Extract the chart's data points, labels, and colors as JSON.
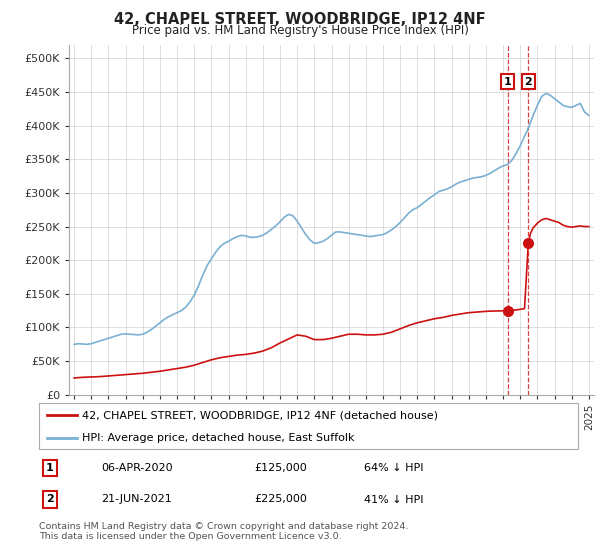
{
  "title": "42, CHAPEL STREET, WOODBRIDGE, IP12 4NF",
  "subtitle": "Price paid vs. HM Land Registry's House Price Index (HPI)",
  "yticks": [
    0,
    50000,
    100000,
    150000,
    200000,
    250000,
    300000,
    350000,
    400000,
    450000,
    500000
  ],
  "ytick_labels": [
    "£0",
    "£50K",
    "£100K",
    "£150K",
    "£200K",
    "£250K",
    "£300K",
    "£350K",
    "£400K",
    "£450K",
    "£500K"
  ],
  "xlim_start": 1994.7,
  "xlim_end": 2025.3,
  "ylim": [
    0,
    520000
  ],
  "hpi_color": "#7ab0d4",
  "price_color": "#cc1111",
  "dashed_color": "#cc1111",
  "transaction1": {
    "date_label": "06-APR-2020",
    "year": 2020.27,
    "price": 125000,
    "label": "64% ↓ HPI",
    "num": "1"
  },
  "transaction2": {
    "date_label": "21-JUN-2021",
    "year": 2021.47,
    "price": 225000,
    "label": "41% ↓ HPI",
    "num": "2"
  },
  "legend_line1": "42, CHAPEL STREET, WOODBRIDGE, IP12 4NF (detached house)",
  "legend_line2": "HPI: Average price, detached house, East Suffolk",
  "footer": "Contains HM Land Registry data © Crown copyright and database right 2024.\nThis data is licensed under the Open Government Licence v3.0.",
  "hpi_data": [
    [
      1995.0,
      75000
    ],
    [
      1995.25,
      76000
    ],
    [
      1995.5,
      75500
    ],
    [
      1995.75,
      75000
    ],
    [
      1996.0,
      76000
    ],
    [
      1996.25,
      78000
    ],
    [
      1996.5,
      80000
    ],
    [
      1996.75,
      82000
    ],
    [
      1997.0,
      84000
    ],
    [
      1997.25,
      86000
    ],
    [
      1997.5,
      88000
    ],
    [
      1997.75,
      90000
    ],
    [
      1998.0,
      90500
    ],
    [
      1998.25,
      90000
    ],
    [
      1998.5,
      89500
    ],
    [
      1998.75,
      89000
    ],
    [
      1999.0,
      90000
    ],
    [
      1999.25,
      93000
    ],
    [
      1999.5,
      97000
    ],
    [
      1999.75,
      102000
    ],
    [
      2000.0,
      107000
    ],
    [
      2000.25,
      112000
    ],
    [
      2000.5,
      116000
    ],
    [
      2000.75,
      119000
    ],
    [
      2001.0,
      122000
    ],
    [
      2001.25,
      125000
    ],
    [
      2001.5,
      130000
    ],
    [
      2001.75,
      138000
    ],
    [
      2002.0,
      148000
    ],
    [
      2002.25,
      162000
    ],
    [
      2002.5,
      178000
    ],
    [
      2002.75,
      192000
    ],
    [
      2003.0,
      202000
    ],
    [
      2003.25,
      212000
    ],
    [
      2003.5,
      220000
    ],
    [
      2003.75,
      225000
    ],
    [
      2004.0,
      228000
    ],
    [
      2004.25,
      232000
    ],
    [
      2004.5,
      235000
    ],
    [
      2004.75,
      237000
    ],
    [
      2005.0,
      236000
    ],
    [
      2005.25,
      234000
    ],
    [
      2005.5,
      234000
    ],
    [
      2005.75,
      235000
    ],
    [
      2006.0,
      237000
    ],
    [
      2006.25,
      241000
    ],
    [
      2006.5,
      246000
    ],
    [
      2006.75,
      251000
    ],
    [
      2007.0,
      257000
    ],
    [
      2007.25,
      264000
    ],
    [
      2007.5,
      268000
    ],
    [
      2007.75,
      266000
    ],
    [
      2008.0,
      258000
    ],
    [
      2008.25,
      248000
    ],
    [
      2008.5,
      238000
    ],
    [
      2008.75,
      230000
    ],
    [
      2009.0,
      225000
    ],
    [
      2009.25,
      226000
    ],
    [
      2009.5,
      228000
    ],
    [
      2009.75,
      232000
    ],
    [
      2010.0,
      237000
    ],
    [
      2010.25,
      242000
    ],
    [
      2010.5,
      242000
    ],
    [
      2010.75,
      241000
    ],
    [
      2011.0,
      240000
    ],
    [
      2011.25,
      239000
    ],
    [
      2011.5,
      238000
    ],
    [
      2011.75,
      237000
    ],
    [
      2012.0,
      236000
    ],
    [
      2012.25,
      235000
    ],
    [
      2012.5,
      236000
    ],
    [
      2012.75,
      237000
    ],
    [
      2013.0,
      238000
    ],
    [
      2013.25,
      241000
    ],
    [
      2013.5,
      245000
    ],
    [
      2013.75,
      250000
    ],
    [
      2014.0,
      256000
    ],
    [
      2014.25,
      263000
    ],
    [
      2014.5,
      270000
    ],
    [
      2014.75,
      275000
    ],
    [
      2015.0,
      278000
    ],
    [
      2015.25,
      283000
    ],
    [
      2015.5,
      288000
    ],
    [
      2015.75,
      293000
    ],
    [
      2016.0,
      297000
    ],
    [
      2016.25,
      302000
    ],
    [
      2016.5,
      304000
    ],
    [
      2016.75,
      306000
    ],
    [
      2017.0,
      309000
    ],
    [
      2017.25,
      313000
    ],
    [
      2017.5,
      316000
    ],
    [
      2017.75,
      318000
    ],
    [
      2018.0,
      320000
    ],
    [
      2018.25,
      322000
    ],
    [
      2018.5,
      323000
    ],
    [
      2018.75,
      324000
    ],
    [
      2019.0,
      326000
    ],
    [
      2019.25,
      329000
    ],
    [
      2019.5,
      333000
    ],
    [
      2019.75,
      337000
    ],
    [
      2020.0,
      340000
    ],
    [
      2020.25,
      342000
    ],
    [
      2020.5,
      348000
    ],
    [
      2020.75,
      358000
    ],
    [
      2021.0,
      370000
    ],
    [
      2021.25,
      384000
    ],
    [
      2021.5,
      398000
    ],
    [
      2021.75,
      415000
    ],
    [
      2022.0,
      430000
    ],
    [
      2022.25,
      443000
    ],
    [
      2022.5,
      448000
    ],
    [
      2022.75,
      445000
    ],
    [
      2023.0,
      440000
    ],
    [
      2023.25,
      435000
    ],
    [
      2023.5,
      430000
    ],
    [
      2023.75,
      428000
    ],
    [
      2024.0,
      427000
    ],
    [
      2024.25,
      430000
    ],
    [
      2024.5,
      433000
    ],
    [
      2024.75,
      420000
    ],
    [
      2025.0,
      415000
    ]
  ],
  "price_data": [
    [
      1995.0,
      25000
    ],
    [
      1995.5,
      26000
    ],
    [
      1996.0,
      26500
    ],
    [
      1996.5,
      27000
    ],
    [
      1997.0,
      28000
    ],
    [
      1997.5,
      29000
    ],
    [
      1998.0,
      30000
    ],
    [
      1998.5,
      31000
    ],
    [
      1999.0,
      32000
    ],
    [
      1999.5,
      33500
    ],
    [
      2000.0,
      35000
    ],
    [
      2000.5,
      37000
    ],
    [
      2001.0,
      39000
    ],
    [
      2001.5,
      41000
    ],
    [
      2002.0,
      44000
    ],
    [
      2002.5,
      48000
    ],
    [
      2003.0,
      52000
    ],
    [
      2003.5,
      55000
    ],
    [
      2004.0,
      57000
    ],
    [
      2004.5,
      59000
    ],
    [
      2005.0,
      60000
    ],
    [
      2005.5,
      62000
    ],
    [
      2006.0,
      65000
    ],
    [
      2006.5,
      70000
    ],
    [
      2007.0,
      77000
    ],
    [
      2007.5,
      83000
    ],
    [
      2008.0,
      89000
    ],
    [
      2008.5,
      87000
    ],
    [
      2009.0,
      82000
    ],
    [
      2009.5,
      82000
    ],
    [
      2010.0,
      84000
    ],
    [
      2010.5,
      87000
    ],
    [
      2011.0,
      90000
    ],
    [
      2011.5,
      90000
    ],
    [
      2012.0,
      89000
    ],
    [
      2012.5,
      89000
    ],
    [
      2013.0,
      90000
    ],
    [
      2013.5,
      93000
    ],
    [
      2014.0,
      98000
    ],
    [
      2014.5,
      103000
    ],
    [
      2015.0,
      107000
    ],
    [
      2015.5,
      110000
    ],
    [
      2016.0,
      113000
    ],
    [
      2016.5,
      115000
    ],
    [
      2017.0,
      118000
    ],
    [
      2017.5,
      120000
    ],
    [
      2018.0,
      122000
    ],
    [
      2018.5,
      123000
    ],
    [
      2019.0,
      124000
    ],
    [
      2019.5,
      124500
    ],
    [
      2020.0,
      124800
    ],
    [
      2020.27,
      125000
    ],
    [
      2020.3,
      125000
    ],
    [
      2020.5,
      125500
    ],
    [
      2020.75,
      126000
    ],
    [
      2021.0,
      127000
    ],
    [
      2021.25,
      128000
    ],
    [
      2021.47,
      225000
    ],
    [
      2021.6,
      240000
    ],
    [
      2021.75,
      248000
    ],
    [
      2022.0,
      255000
    ],
    [
      2022.25,
      260000
    ],
    [
      2022.5,
      262000
    ],
    [
      2022.75,
      260000
    ],
    [
      2023.0,
      258000
    ],
    [
      2023.25,
      256000
    ],
    [
      2023.5,
      252000
    ],
    [
      2023.75,
      250000
    ],
    [
      2024.0,
      249000
    ],
    [
      2024.25,
      250000
    ],
    [
      2024.5,
      251000
    ],
    [
      2024.75,
      250000
    ],
    [
      2025.0,
      250000
    ]
  ]
}
